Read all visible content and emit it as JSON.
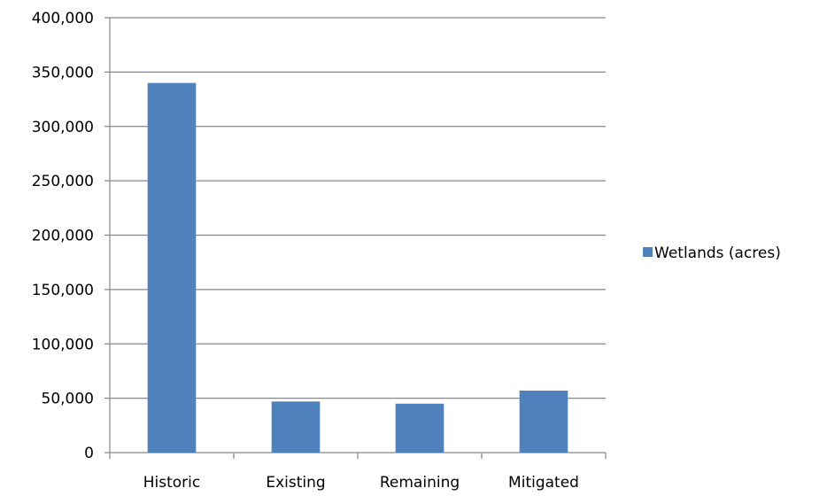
{
  "chart_data": {
    "type": "bar",
    "categories": [
      "Historic",
      "Existing",
      "Remaining",
      "Mitigated"
    ],
    "series": [
      {
        "name": "Wetlands (acres)",
        "values": [
          340000,
          47000,
          45000,
          57000
        ],
        "color": "#4F81BD"
      }
    ],
    "yticks": [
      "0",
      "50,000",
      "100,000",
      "150,000",
      "200,000",
      "250,000",
      "300,000",
      "350,000",
      "400,000"
    ],
    "ylim": [
      0,
      400000
    ],
    "grid": true,
    "legend_position": "right"
  }
}
